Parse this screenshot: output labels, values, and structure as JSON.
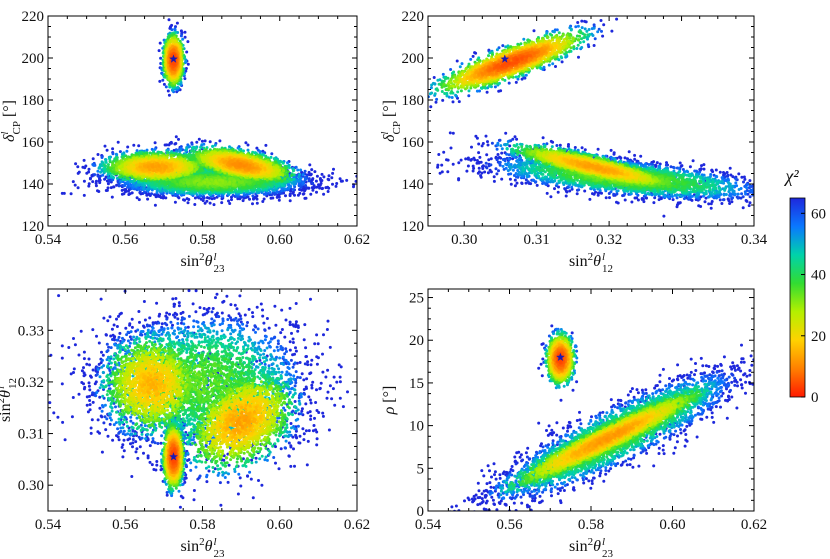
{
  "chart_data": [
    {
      "id": "panel-1",
      "type": "scatter",
      "title": "",
      "xlabel": "sin²θ₂₃ˡ",
      "ylabel": "δCPˡ [°]",
      "xlim": [
        0.54,
        0.62
      ],
      "ylim": [
        120,
        220
      ],
      "xticks": [
        "0.54",
        "0.56",
        "0.58",
        "0.60",
        "0.62"
      ],
      "yticks": [
        "120",
        "140",
        "160",
        "180",
        "200",
        "220"
      ],
      "best_fit": {
        "x": 0.5725,
        "y": 199.5
      },
      "clusters": [
        {
          "name": "upper island",
          "cx": 0.5725,
          "cy": 199,
          "sx": 0.0012,
          "sy": 5.5,
          "rho": 0.0,
          "chi2_center": 3
        },
        {
          "name": "lower band left",
          "cx": 0.568,
          "cy": 148,
          "sx": 0.0065,
          "sy": 3.5,
          "rho": 0.0,
          "chi2_center": 12
        },
        {
          "name": "lower band right",
          "cx": 0.59,
          "cy": 149,
          "sx": 0.0065,
          "sy": 4.0,
          "rho": -0.55,
          "chi2_center": 10
        },
        {
          "name": "lower halo",
          "cx": 0.583,
          "cy": 141,
          "sx": 0.012,
          "sy": 3.5,
          "rho": 0.0,
          "chi2_center": 30
        }
      ]
    },
    {
      "id": "panel-2",
      "type": "scatter",
      "title": "",
      "xlabel": "sin²θ₁₂ˡ",
      "ylabel": "δCPˡ [°]",
      "xlim": [
        0.295,
        0.34
      ],
      "ylim": [
        120,
        220
      ],
      "xticks": [
        "0.30",
        "0.31",
        "0.32",
        "0.33",
        "0.34"
      ],
      "yticks": [
        "120",
        "140",
        "160",
        "180",
        "200",
        "220"
      ],
      "best_fit": {
        "x": 0.3056,
        "y": 199.5
      },
      "clusters": [
        {
          "name": "upper band",
          "cx": 0.3065,
          "cy": 198,
          "sx": 0.0045,
          "sy": 6.5,
          "rho": 0.85,
          "chi2_center": 4
        },
        {
          "name": "lower band",
          "cx": 0.318,
          "cy": 148,
          "sx": 0.0055,
          "sy": 5.0,
          "rho": -0.85,
          "chi2_center": 12
        },
        {
          "name": "lower halo",
          "cx": 0.322,
          "cy": 143,
          "sx": 0.009,
          "sy": 5.0,
          "rho": -0.6,
          "chi2_center": 30
        }
      ]
    },
    {
      "id": "panel-3",
      "type": "scatter",
      "title": "",
      "xlabel": "sin²θ₂₃ˡ",
      "ylabel": "sin²θ₁₂ˡ",
      "xlim": [
        0.54,
        0.62
      ],
      "ylim": [
        0.295,
        0.338
      ],
      "xticks": [
        "0.54",
        "0.56",
        "0.58",
        "0.60",
        "0.62"
      ],
      "yticks": [
        "0.30",
        "0.31",
        "0.32",
        "0.33"
      ],
      "best_fit": {
        "x": 0.5725,
        "y": 0.3055
      },
      "clusters": [
        {
          "name": "narrow column",
          "cx": 0.5725,
          "cy": 0.3055,
          "sx": 0.0012,
          "sy": 0.0028,
          "rho": 0.0,
          "chi2_center": 3
        },
        {
          "name": "left lobe",
          "cx": 0.567,
          "cy": 0.3195,
          "sx": 0.006,
          "sy": 0.0045,
          "rho": 0.0,
          "chi2_center": 14
        },
        {
          "name": "right lobe",
          "cx": 0.59,
          "cy": 0.3125,
          "sx": 0.0065,
          "sy": 0.0045,
          "rho": 0.35,
          "chi2_center": 12
        },
        {
          "name": "halo",
          "cx": 0.58,
          "cy": 0.32,
          "sx": 0.013,
          "sy": 0.0065,
          "rho": 0.0,
          "chi2_center": 32
        }
      ]
    },
    {
      "id": "panel-4",
      "type": "scatter",
      "title": "",
      "xlabel": "sin²θ₂₃ˡ",
      "ylabel": "ρ [°]",
      "xlim": [
        0.54,
        0.62
      ],
      "ylim": [
        0,
        26
      ],
      "xticks": [
        "0.54",
        "0.56",
        "0.58",
        "0.60",
        "0.62"
      ],
      "yticks": [
        "0",
        "5",
        "10",
        "15",
        "20",
        "25"
      ],
      "best_fit": {
        "x": 0.5725,
        "y": 18.0
      },
      "clusters": [
        {
          "name": "upper island",
          "cx": 0.5725,
          "cy": 17.8,
          "sx": 0.0015,
          "sy": 1.3,
          "rho": 0.0,
          "chi2_center": 3
        },
        {
          "name": "diagonal band",
          "cx": 0.584,
          "cy": 8.5,
          "sx": 0.0115,
          "sy": 2.8,
          "rho": 0.95,
          "chi2_center": 11
        },
        {
          "name": "halo",
          "cx": 0.586,
          "cy": 8.8,
          "sx": 0.014,
          "sy": 3.6,
          "rho": 0.88,
          "chi2_center": 30
        }
      ]
    }
  ],
  "colorbar": {
    "label": "χ²",
    "ticks": [
      "0",
      "20",
      "40",
      "60"
    ],
    "range": [
      0,
      65
    ],
    "colors": [
      "#ff1a00",
      "#ff8000",
      "#ffd200",
      "#b4f000",
      "#32dc32",
      "#00d2aa",
      "#0a78ff",
      "#1e28dc"
    ]
  },
  "best_fit_color": "#1a1ab4"
}
